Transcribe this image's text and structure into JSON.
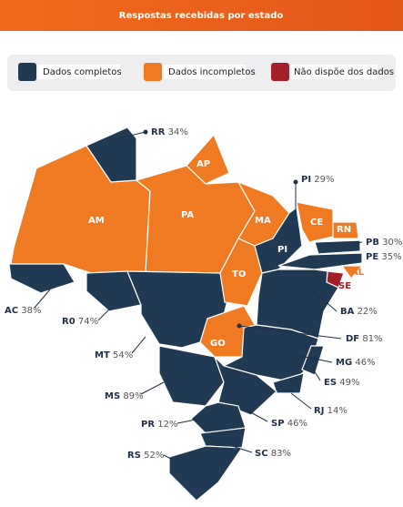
{
  "header": {
    "title": "Respostas recebidas por estado"
  },
  "legend": [
    {
      "label": "Dados completos"
    },
    {
      "label": "Dados incompletos"
    },
    {
      "label": "Não dispõe dos dados"
    }
  ],
  "states": [
    {
      "code": "RR",
      "percent": "34%"
    },
    {
      "code": "PI",
      "percent": "29%"
    },
    {
      "code": "PB",
      "percent": "30%"
    },
    {
      "code": "PE",
      "percent": "35%"
    },
    {
      "code": "AC",
      "percent": "38%"
    },
    {
      "code": "R0",
      "percent": "74%"
    },
    {
      "code": "BA",
      "percent": "22%"
    },
    {
      "code": "MT",
      "percent": "54%"
    },
    {
      "code": "DF",
      "percent": "81%"
    },
    {
      "code": "MG",
      "percent": "46%"
    },
    {
      "code": "MS",
      "percent": "89%"
    },
    {
      "code": "ES",
      "percent": "49%"
    },
    {
      "code": "RJ",
      "percent": "14%"
    },
    {
      "code": "PR",
      "percent": "12%"
    },
    {
      "code": "SP",
      "percent": "46%"
    },
    {
      "code": "RS",
      "percent": "52%"
    },
    {
      "code": "SC",
      "percent": "83%"
    }
  ],
  "map_labels": [
    "AP",
    "AM",
    "PA",
    "MA",
    "CE",
    "RN",
    "PI",
    "TO",
    "GO",
    "AL",
    "SE"
  ]
}
